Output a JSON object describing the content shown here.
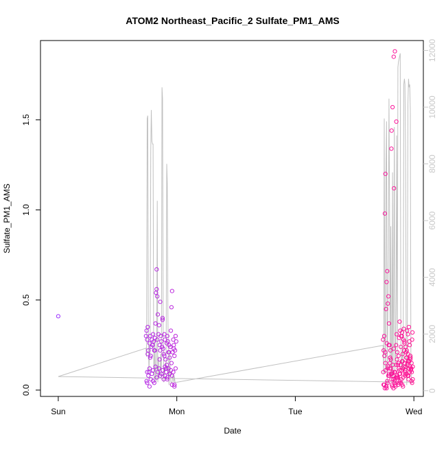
{
  "chart_data": {
    "type": "scatter",
    "title": "ATOM2 Northeast_Pacific_2 Sulfate_PM1_AMS",
    "xlabel": "Date",
    "ylabel": "Sulfate_PM1_AMS",
    "x_unit": "days since Sun 00:00",
    "xlim": [
      -0.15,
      3.08
    ],
    "ylim": [
      -0.035,
      1.94
    ],
    "right_ylim": [
      -200,
      12350
    ],
    "x_ticks": [
      {
        "v": 0,
        "label": "Sun"
      },
      {
        "v": 1,
        "label": "Mon"
      },
      {
        "v": 2,
        "label": "Tue"
      },
      {
        "v": 3,
        "label": "Wed"
      }
    ],
    "y_ticks": [
      {
        "v": 0.0,
        "label": "0.0"
      },
      {
        "v": 0.5,
        "label": "0.5"
      },
      {
        "v": 1.0,
        "label": "1.0"
      },
      {
        "v": 1.5,
        "label": "1.5"
      }
    ],
    "right_ticks": [
      {
        "v": 0,
        "label": "0"
      },
      {
        "v": 2000,
        "label": "2000"
      },
      {
        "v": 4000,
        "label": "4000"
      },
      {
        "v": 6000,
        "label": "6000"
      },
      {
        "v": 8000,
        "label": "8000"
      },
      {
        "v": 10000,
        "label": "10000"
      },
      {
        "v": 12000,
        "label": "12000"
      }
    ],
    "colors": {
      "points_start": "#9b30ff",
      "points_end": "#ff1493",
      "line": "#c0c0c0",
      "axis": "#000000",
      "right_axis": "#c8c8c8"
    },
    "series": [
      {
        "kind": "points",
        "x": [
          0.0,
          0.74,
          0.745,
          0.75,
          0.755,
          0.76,
          0.765,
          0.77,
          0.775,
          0.78,
          0.785,
          0.79,
          0.795,
          0.8,
          0.805,
          0.81,
          0.815,
          0.82,
          0.825,
          0.83,
          0.835,
          0.84,
          0.845,
          0.85,
          0.855,
          0.86,
          0.865,
          0.87,
          0.875,
          0.88,
          0.885,
          0.89,
          0.895,
          0.9,
          0.905,
          0.91,
          0.915,
          0.92,
          0.925,
          0.93,
          0.935,
          0.94,
          0.945,
          0.95,
          0.955,
          0.96,
          0.965,
          0.97,
          0.975,
          0.98,
          0.985,
          0.99,
          0.995,
          0.745,
          0.75,
          0.76,
          0.77,
          0.78,
          0.79,
          0.8,
          0.81,
          0.82,
          0.83,
          0.84,
          0.85,
          0.86,
          0.87,
          0.88,
          0.89,
          0.9,
          0.91,
          0.92,
          0.93,
          0.94,
          0.95,
          0.96,
          0.97,
          0.98,
          0.99,
          0.755,
          0.775,
          0.795,
          0.815,
          0.835,
          0.855,
          0.875,
          0.895,
          0.915,
          0.935,
          0.955,
          0.975,
          0.75,
          0.77,
          0.8,
          0.83,
          0.86,
          0.88,
          0.9,
          0.92,
          0.94,
          0.96,
          0.98,
          2.74,
          2.745,
          2.75,
          2.755,
          2.76,
          2.765,
          2.77,
          2.775,
          2.78,
          2.785,
          2.79,
          2.795,
          2.8,
          2.805,
          2.81,
          2.815,
          2.82,
          2.825,
          2.83,
          2.835,
          2.84,
          2.845,
          2.85,
          2.855,
          2.86,
          2.865,
          2.87,
          2.875,
          2.88,
          2.885,
          2.89,
          2.895,
          2.9,
          2.905,
          2.91,
          2.915,
          2.92,
          2.925,
          2.93,
          2.935,
          2.94,
          2.945,
          2.95,
          2.955,
          2.96,
          2.965,
          2.97,
          2.975,
          2.98,
          2.985,
          2.99,
          2.745,
          2.755,
          2.765,
          2.775,
          2.785,
          2.795,
          2.805,
          2.815,
          2.825,
          2.835,
          2.845,
          2.855,
          2.865,
          2.875,
          2.885,
          2.895,
          2.905,
          2.915,
          2.925,
          2.935,
          2.945,
          2.955,
          2.965,
          2.975,
          2.985,
          2.75,
          2.76,
          2.77,
          2.78,
          2.79,
          2.8,
          2.81,
          2.82,
          2.83,
          2.84,
          2.85,
          2.86,
          2.87,
          2.88,
          2.89,
          2.9,
          2.91,
          2.92,
          2.93,
          2.94,
          2.95,
          2.96,
          2.97,
          2.98,
          2.99,
          2.752,
          2.762,
          2.772,
          2.782,
          2.792,
          2.802,
          2.812,
          2.822,
          2.832,
          2.842,
          2.852,
          2.862,
          2.872,
          2.882,
          2.892,
          2.902,
          2.912,
          2.922,
          2.932,
          2.942,
          2.952,
          2.962,
          2.972,
          2.982,
          2.742,
          2.768,
          2.788,
          2.808,
          2.828,
          2.848,
          2.868,
          2.888,
          2.908,
          2.928,
          2.948,
          2.968,
          2.988,
          2.758,
          2.778,
          2.798,
          2.818,
          2.838,
          2.858,
          2.878,
          2.898,
          2.918,
          2.938,
          2.958,
          2.978
        ],
        "y": [
          0.41,
          0.3,
          0.33,
          0.28,
          0.35,
          0.22,
          0.1,
          0.26,
          0.3,
          0.19,
          0.24,
          0.28,
          0.25,
          0.31,
          0.27,
          0.22,
          0.29,
          0.37,
          0.54,
          0.56,
          0.52,
          0.42,
          0.31,
          0.36,
          0.25,
          0.22,
          0.3,
          0.27,
          0.24,
          0.39,
          0.23,
          0.2,
          0.31,
          0.28,
          0.17,
          0.12,
          0.14,
          0.3,
          0.27,
          0.21,
          0.25,
          0.18,
          0.24,
          0.33,
          0.46,
          0.55,
          0.21,
          0.28,
          0.25,
          0.19,
          0.22,
          0.3,
          0.27,
          0.05,
          0.1,
          0.08,
          0.12,
          0.06,
          0.09,
          0.11,
          0.04,
          0.13,
          0.07,
          0.1,
          0.12,
          0.08,
          0.09,
          0.11,
          0.06,
          0.13,
          0.1,
          0.07,
          0.12,
          0.09,
          0.11,
          0.08,
          0.1,
          0.03,
          0.12,
          0.2,
          0.18,
          0.25,
          0.22,
          0.28,
          0.17,
          0.24,
          0.19,
          0.26,
          0.21,
          0.15,
          0.23,
          0.04,
          0.02,
          0.05,
          0.67,
          0.49,
          0.4,
          0.08,
          0.06,
          0.09,
          0.03,
          0.02,
          0.28,
          0.03,
          0.3,
          0.98,
          1.2,
          0.45,
          0.6,
          0.66,
          0.48,
          0.52,
          0.37,
          0.25,
          0.18,
          0.12,
          1.34,
          0.09,
          1.57,
          0.08,
          1.85,
          0.04,
          1.88,
          0.03,
          0.25,
          0.31,
          0.21,
          0.07,
          0.15,
          0.29,
          0.38,
          0.33,
          0.24,
          0.06,
          0.32,
          0.2,
          0.12,
          0.34,
          0.27,
          0.1,
          0.09,
          0.18,
          0.22,
          0.14,
          0.31,
          0.08,
          0.16,
          0.25,
          0.19,
          0.11,
          0.05,
          0.28,
          0.13,
          0.22,
          0.01,
          0.02,
          0.05,
          0.08,
          0.12,
          0.17,
          0.03,
          0.06,
          0.1,
          0.02,
          0.07,
          0.14,
          0.04,
          0.09,
          0.11,
          0.16,
          0.13,
          0.08,
          0.21,
          0.15,
          0.06,
          0.1,
          0.12,
          0.04,
          0.03,
          0.15,
          0.01,
          0.12,
          0.09,
          0.18,
          0.06,
          0.1,
          0.23,
          0.05,
          0.14,
          0.08,
          0.19,
          0.11,
          0.04,
          0.16,
          0.07,
          0.26,
          0.13,
          0.09,
          0.2,
          0.12,
          0.17,
          0.15,
          0.06,
          0.19,
          0.11,
          0.26,
          0.13,
          0.08,
          0.22,
          1.44,
          0.14,
          1.12,
          0.1,
          1.49,
          0.07,
          0.12,
          0.05,
          0.3,
          0.03,
          0.28,
          0.15,
          0.24,
          0.33,
          0.16,
          0.27,
          0.18,
          0.1,
          0.1,
          0.02,
          0.25,
          0.09,
          0.01,
          0.07,
          0.03,
          0.14,
          0.02,
          0.11,
          0.08,
          0.13,
          0.32,
          0.21,
          0.04,
          0.15,
          0.02,
          0.06,
          0.17,
          0.09,
          0.3,
          0.22,
          0.18,
          0.35,
          0.12
        ]
      },
      {
        "kind": "line",
        "x": [
          0.0,
          0.74,
          0.745,
          0.75,
          0.755,
          0.76,
          0.765,
          0.77,
          0.775,
          0.78,
          0.785,
          0.79,
          0.795,
          0.8,
          0.805,
          0.81,
          0.815,
          0.82,
          0.825,
          0.83,
          0.835,
          0.84,
          0.845,
          0.85,
          0.855,
          0.86,
          0.865,
          0.87,
          0.875,
          0.88,
          0.885,
          0.89,
          0.895,
          0.9,
          0.905,
          0.91,
          0.915,
          0.92,
          0.925,
          0.93,
          0.935,
          0.94,
          0.945,
          0.95,
          0.955,
          0.96,
          0.965,
          0.97,
          0.975,
          0.98,
          0.985,
          0.99,
          0.995,
          1.0,
          2.74,
          2.745,
          2.75,
          2.755,
          2.76,
          2.765,
          2.77,
          2.775,
          2.78,
          2.785,
          2.79,
          2.795,
          2.8,
          2.805,
          2.81,
          2.815,
          2.82,
          2.825,
          2.83,
          2.835,
          2.84,
          2.845,
          2.85,
          2.855,
          2.86,
          2.865,
          2.87,
          2.875,
          2.88,
          2.885,
          2.89,
          2.895,
          2.9,
          2.905,
          2.91,
          2.915,
          2.92,
          2.925,
          2.93,
          2.935,
          2.94,
          2.945,
          2.95,
          2.955,
          2.96,
          2.965,
          2.97,
          2.975,
          2.98,
          2.985,
          2.99,
          0.0
        ],
        "y": [
          500,
          1500,
          1200,
          9600,
          9700,
          2000,
          600,
          1500,
          1300,
          8400,
          9900,
          8800,
          8700,
          8700,
          1000,
          400,
          1800,
          600,
          300,
          1200,
          6700,
          300,
          1200,
          500,
          700,
          800,
          1300,
          400,
          10700,
          10300,
          2200,
          300,
          500,
          700,
          1000,
          700,
          8000,
          7300,
          2700,
          600,
          200,
          1400,
          500,
          300,
          300,
          300,
          500,
          600,
          300,
          500,
          300,
          300,
          300,
          300,
          1600,
          600,
          9600,
          2000,
          600,
          8000,
          9500,
          200,
          2600,
          5000,
          10300,
          6500,
          800,
          5800,
          600,
          500,
          7700,
          400,
          3500,
          9300,
          700,
          1200,
          3500,
          9000,
          700,
          11400,
          11600,
          11700,
          11800,
          11900,
          1800,
          700,
          1200,
          1500,
          700,
          10800,
          11000,
          10800,
          8400,
          1000,
          200,
          2500,
          10100,
          11000,
          10700,
          10800,
          9900,
          700,
          400,
          300,
          300,
          500
        ]
      }
    ]
  }
}
